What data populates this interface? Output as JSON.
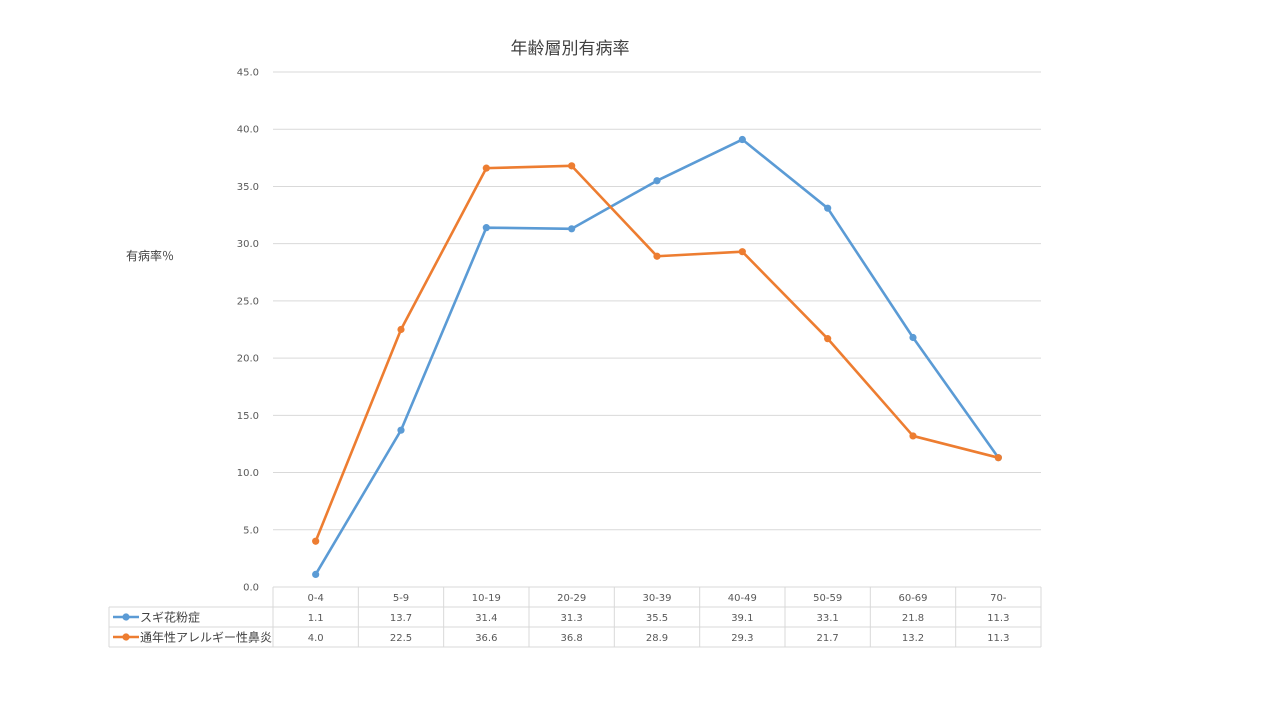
{
  "chart_data": {
    "type": "line",
    "title": "年齢層別有病率",
    "xlabel": "",
    "ylabel": "有病率％",
    "categories": [
      "0-4",
      "5-9",
      "10-19",
      "20-29",
      "30-39",
      "40-49",
      "50-59",
      "60-69",
      "70-"
    ],
    "ylim": [
      0,
      45
    ],
    "yticks": [
      "0.0",
      "5.0",
      "10.0",
      "15.0",
      "20.0",
      "25.0",
      "30.0",
      "35.0",
      "40.0",
      "45.0"
    ],
    "grid": true,
    "data_table": true,
    "series": [
      {
        "name": "スギ花粉症",
        "color": "#5B9BD5",
        "values": [
          1.1,
          13.7,
          31.4,
          31.3,
          35.5,
          39.1,
          33.1,
          21.8,
          11.3
        ],
        "labels": [
          "1.1",
          "13.7",
          "31.4",
          "31.3",
          "35.5",
          "39.1",
          "33.1",
          "21.8",
          "11.3"
        ]
      },
      {
        "name": "通年性アレルギー性鼻炎",
        "color": "#ED7D31",
        "values": [
          4.0,
          22.5,
          36.6,
          36.8,
          28.9,
          29.3,
          21.7,
          13.2,
          11.3
        ],
        "labels": [
          "4.0",
          "22.5",
          "36.6",
          "36.8",
          "28.9",
          "29.3",
          "21.7",
          "13.2",
          "11.3"
        ]
      }
    ]
  }
}
